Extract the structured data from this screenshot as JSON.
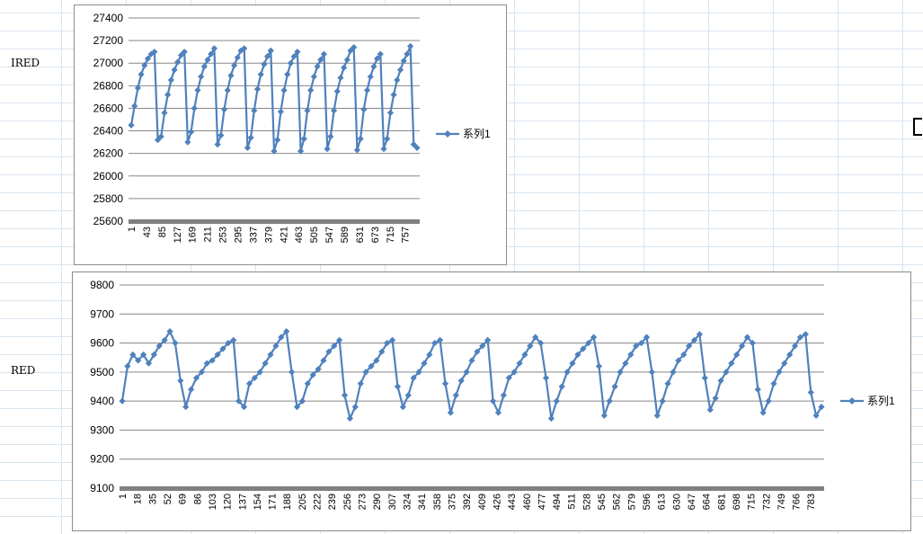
{
  "sheet": {
    "row_labels": {
      "ired": "IRED",
      "red": "RED"
    }
  },
  "colors": {
    "series": "#4f81bd",
    "grid": "#868686",
    "axis_band": "#808080"
  },
  "chart_data": [
    {
      "type": "line",
      "id": "ired",
      "title": "",
      "xlabel": "",
      "ylabel": "",
      "ylim": [
        25600,
        27400
      ],
      "yticks": [
        25600,
        25800,
        26000,
        26200,
        26400,
        26600,
        26800,
        27000,
        27200,
        27400
      ],
      "x_tick_labels": [
        "1",
        "43",
        "85",
        "127",
        "169",
        "211",
        "253",
        "295",
        "337",
        "379",
        "421",
        "463",
        "505",
        "547",
        "589",
        "631",
        "673",
        "715",
        "757"
      ],
      "n_points": 790,
      "marker": "diamond",
      "legend_position": "right",
      "series": [
        {
          "name": "系列1",
          "values": [
            26450,
            26620,
            26780,
            26900,
            26980,
            27040,
            27080,
            27100,
            26320,
            26350,
            26560,
            26720,
            26850,
            26940,
            27010,
            27070,
            27100,
            26300,
            26390,
            26600,
            26760,
            26880,
            26970,
            27030,
            27080,
            27130,
            26280,
            26360,
            26590,
            26760,
            26890,
            26980,
            27050,
            27110,
            27130,
            26250,
            26340,
            26580,
            26770,
            26900,
            26990,
            27060,
            27110,
            26220,
            26320,
            26570,
            26760,
            26900,
            27000,
            27060,
            27100,
            26220,
            26330,
            26580,
            26760,
            26880,
            26970,
            27030,
            27080,
            26240,
            26350,
            26580,
            26750,
            26870,
            26960,
            27030,
            27110,
            27140,
            26230,
            26330,
            26590,
            26760,
            26880,
            26970,
            27040,
            27080,
            26240,
            26330,
            26560,
            26720,
            26850,
            26940,
            27020,
            27080,
            27150,
            26280,
            26250
          ]
        }
      ]
    },
    {
      "type": "line",
      "id": "red",
      "title": "",
      "xlabel": "",
      "ylabel": "",
      "ylim": [
        9100,
        9800
      ],
      "yticks": [
        9100,
        9200,
        9300,
        9400,
        9500,
        9600,
        9700,
        9800
      ],
      "x_tick_labels": [
        "1",
        "18",
        "35",
        "52",
        "69",
        "86",
        "103",
        "120",
        "137",
        "154",
        "171",
        "188",
        "205",
        "222",
        "239",
        "256",
        "273",
        "290",
        "307",
        "324",
        "341",
        "358",
        "375",
        "392",
        "409",
        "426",
        "443",
        "460",
        "477",
        "494",
        "511",
        "528",
        "545",
        "562",
        "579",
        "596",
        "613",
        "630",
        "647",
        "664",
        "681",
        "698",
        "715",
        "732",
        "749",
        "766",
        "783"
      ],
      "n_points": 795,
      "marker": "diamond",
      "legend_position": "right",
      "series": [
        {
          "name": "系列1",
          "values": [
            9400,
            9520,
            9560,
            9540,
            9560,
            9530,
            9560,
            9590,
            9610,
            9640,
            9600,
            9470,
            9380,
            9440,
            9480,
            9500,
            9530,
            9540,
            9560,
            9580,
            9600,
            9610,
            9400,
            9380,
            9460,
            9480,
            9500,
            9530,
            9560,
            9590,
            9620,
            9640,
            9500,
            9380,
            9400,
            9460,
            9490,
            9510,
            9540,
            9570,
            9590,
            9610,
            9420,
            9340,
            9380,
            9460,
            9500,
            9520,
            9540,
            9570,
            9600,
            9610,
            9450,
            9380,
            9420,
            9480,
            9500,
            9530,
            9560,
            9600,
            9610,
            9460,
            9360,
            9420,
            9470,
            9500,
            9540,
            9570,
            9590,
            9610,
            9400,
            9360,
            9420,
            9480,
            9500,
            9530,
            9560,
            9590,
            9620,
            9600,
            9480,
            9340,
            9400,
            9450,
            9500,
            9530,
            9560,
            9580,
            9600,
            9620,
            9520,
            9350,
            9400,
            9450,
            9500,
            9530,
            9560,
            9590,
            9600,
            9620,
            9500,
            9350,
            9400,
            9460,
            9500,
            9540,
            9560,
            9590,
            9610,
            9630,
            9480,
            9370,
            9410,
            9470,
            9500,
            9530,
            9560,
            9590,
            9620,
            9600,
            9440,
            9360,
            9400,
            9460,
            9500,
            9530,
            9560,
            9590,
            9620,
            9630,
            9430,
            9350,
            9380
          ]
        }
      ]
    }
  ]
}
